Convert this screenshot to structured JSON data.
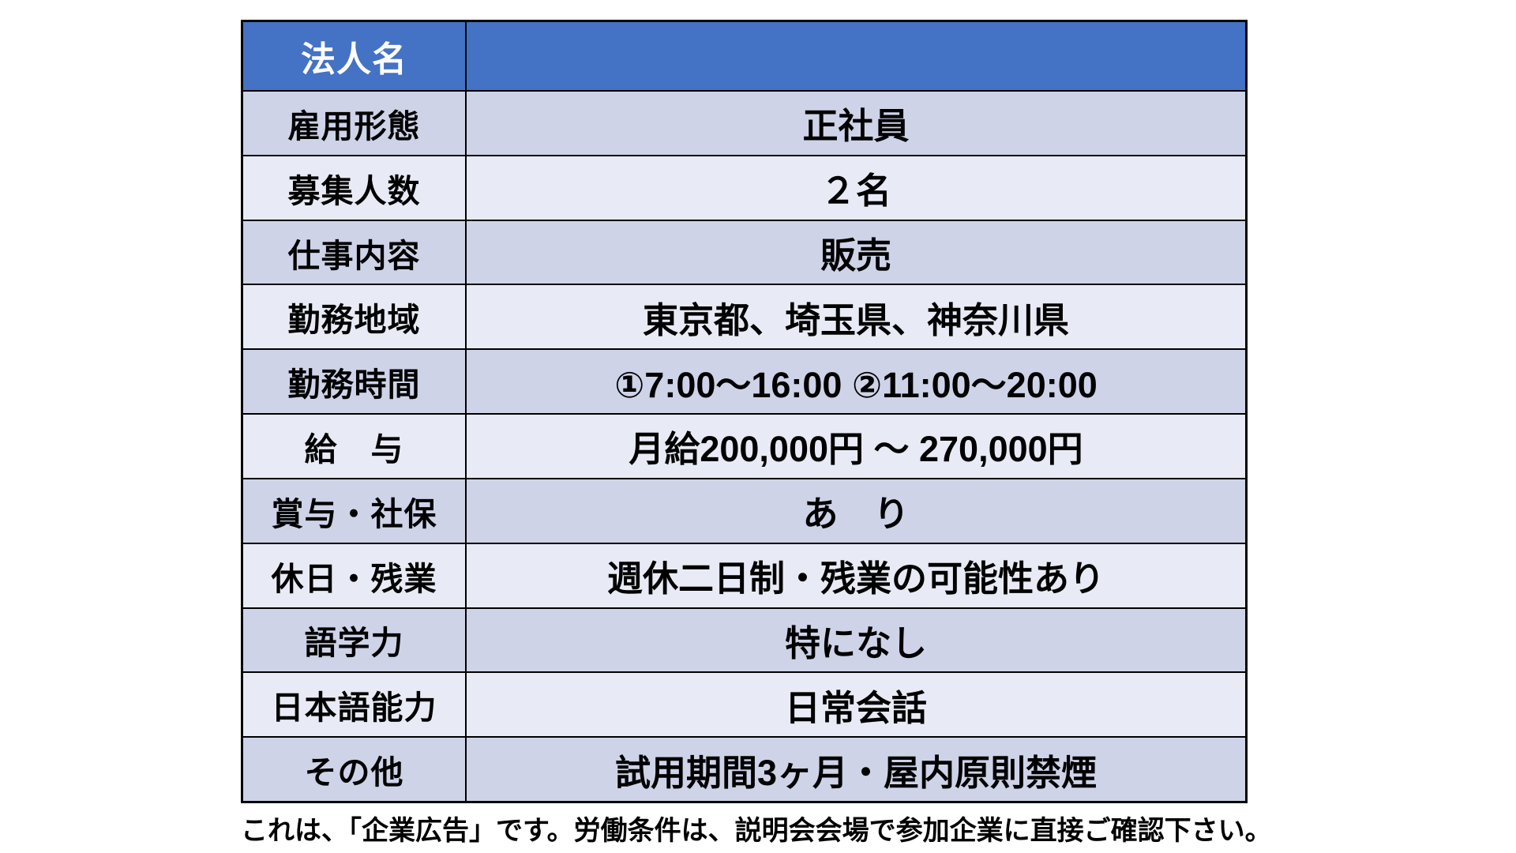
{
  "table": {
    "header": {
      "label": "法人名",
      "value": ""
    },
    "rows": [
      {
        "label": "雇用形態",
        "value": "正社員"
      },
      {
        "label": "募集人数",
        "value": "２名"
      },
      {
        "label": "仕事内容",
        "value": "販売"
      },
      {
        "label": "勤務地域",
        "value": "東京都、埼玉県、神奈川県"
      },
      {
        "label": "勤務時間",
        "value": "①7:00～16:00 ②11:00～20:00"
      },
      {
        "label": "給　与",
        "value": "月給200,000円 ～ 270,000円"
      },
      {
        "label": "賞与・社保",
        "value": "あ　り"
      },
      {
        "label": "休日・残業",
        "value": "週休二日制・残業の可能性あり"
      },
      {
        "label": "語学力",
        "value": "特になし"
      },
      {
        "label": "日本語能力",
        "value": "日常会話"
      },
      {
        "label": "その他",
        "value": "試用期間3ヶ月・屋内原則禁煙"
      }
    ]
  },
  "footer": {
    "note": "これは、「企業広告」です。労働条件は、説明会会場で参加企業に直接ご確認下さい。"
  },
  "colors": {
    "header_bg": "#4472C4",
    "band_dark": "#CFD3E8",
    "band_light": "#E8EBF5",
    "border": "#000000",
    "page_bg": "#FFFFFF",
    "header_text": "#FFFFFF",
    "body_text": "#000000"
  }
}
